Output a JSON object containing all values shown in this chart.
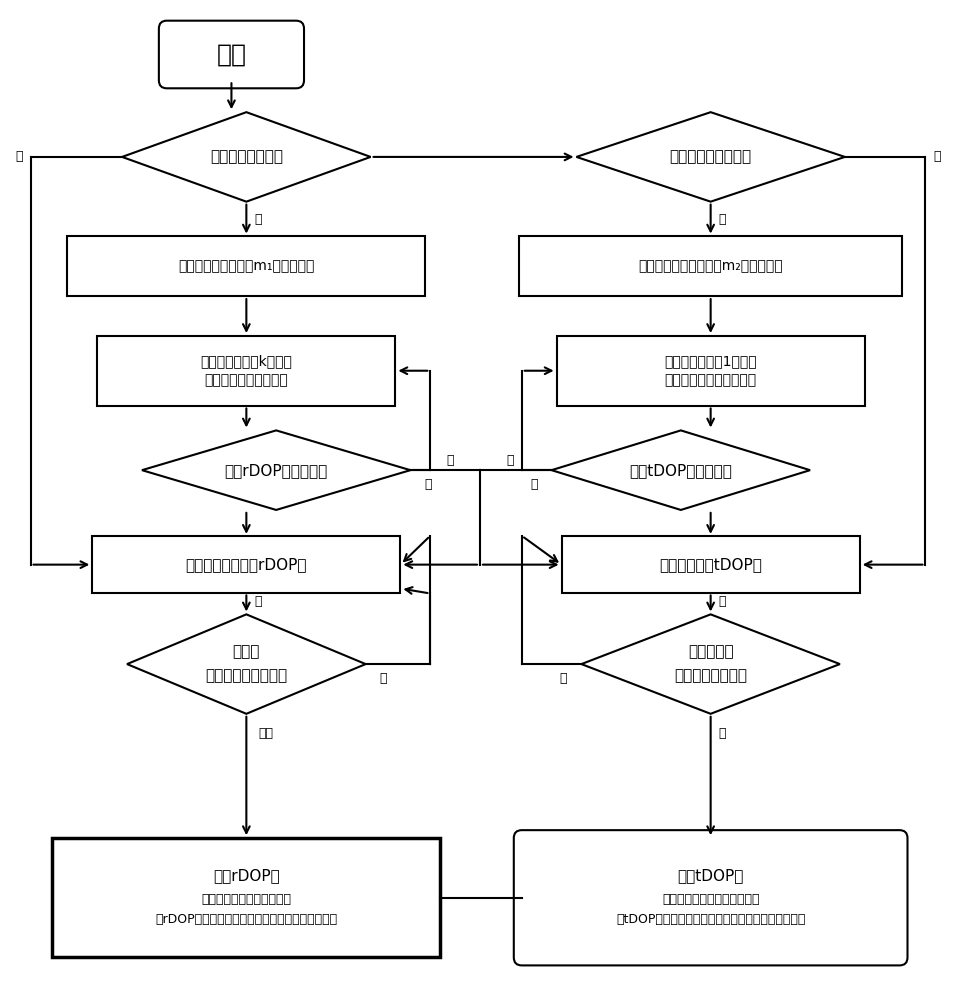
{
  "bg_color": "#ffffff",
  "line_color": "#000000",
  "text_color": "#000000",
  "start_text": "开始",
  "left_diamond1_text": "标靶位置是否已知",
  "right_diamond1_text": "扫描仪位置是否已知",
  "left_rect1_text": "确定适合布设标靶的m₁个备选位置",
  "right_rect1_text": "确定适合架设扫描仪的m₂个备选位置",
  "left_rect2_line1": "从各选位置中选k个位置",
  "left_rect2_line2": "作为一种标靶布设方案",
  "right_rect2_line1": "从各选位置中选1个位置",
  "right_rect2_line2": "作为一种扫描仪架设方案",
  "left_diamond2_text": "判断rDOP值是否最小",
  "right_diamond2_text": "判断tDOP值是否最小",
  "left_rect3_text": "计算此布设方案的rDOP值",
  "right_rect3_text": "计算此方案的tDOP值",
  "left_diamond3_line1": "需找标",
  "left_diamond3_line2": "靶最佳布设方案吗？",
  "right_diamond3_line1": "需找扫描仪",
  "right_diamond3_line2": "最佳架设方案吗？",
  "left_end_line1": "输出rDOP值",
  "left_end_line2": "（标靶分布的质量评估值）",
  "left_end_line3": "（rDOP值最小所对应的方案为最佳标靶布设方案）",
  "right_end_line1": "输出tDOP值",
  "right_end_line2": "（扫描仪布设的质量评估值）",
  "right_end_line3": "（tDOP值最小所对应的方案为最佳扫描仪架设方案）",
  "label_shi": "是",
  "label_fou": "否",
  "label_xu": "需",
  "label_buxu": "不需"
}
